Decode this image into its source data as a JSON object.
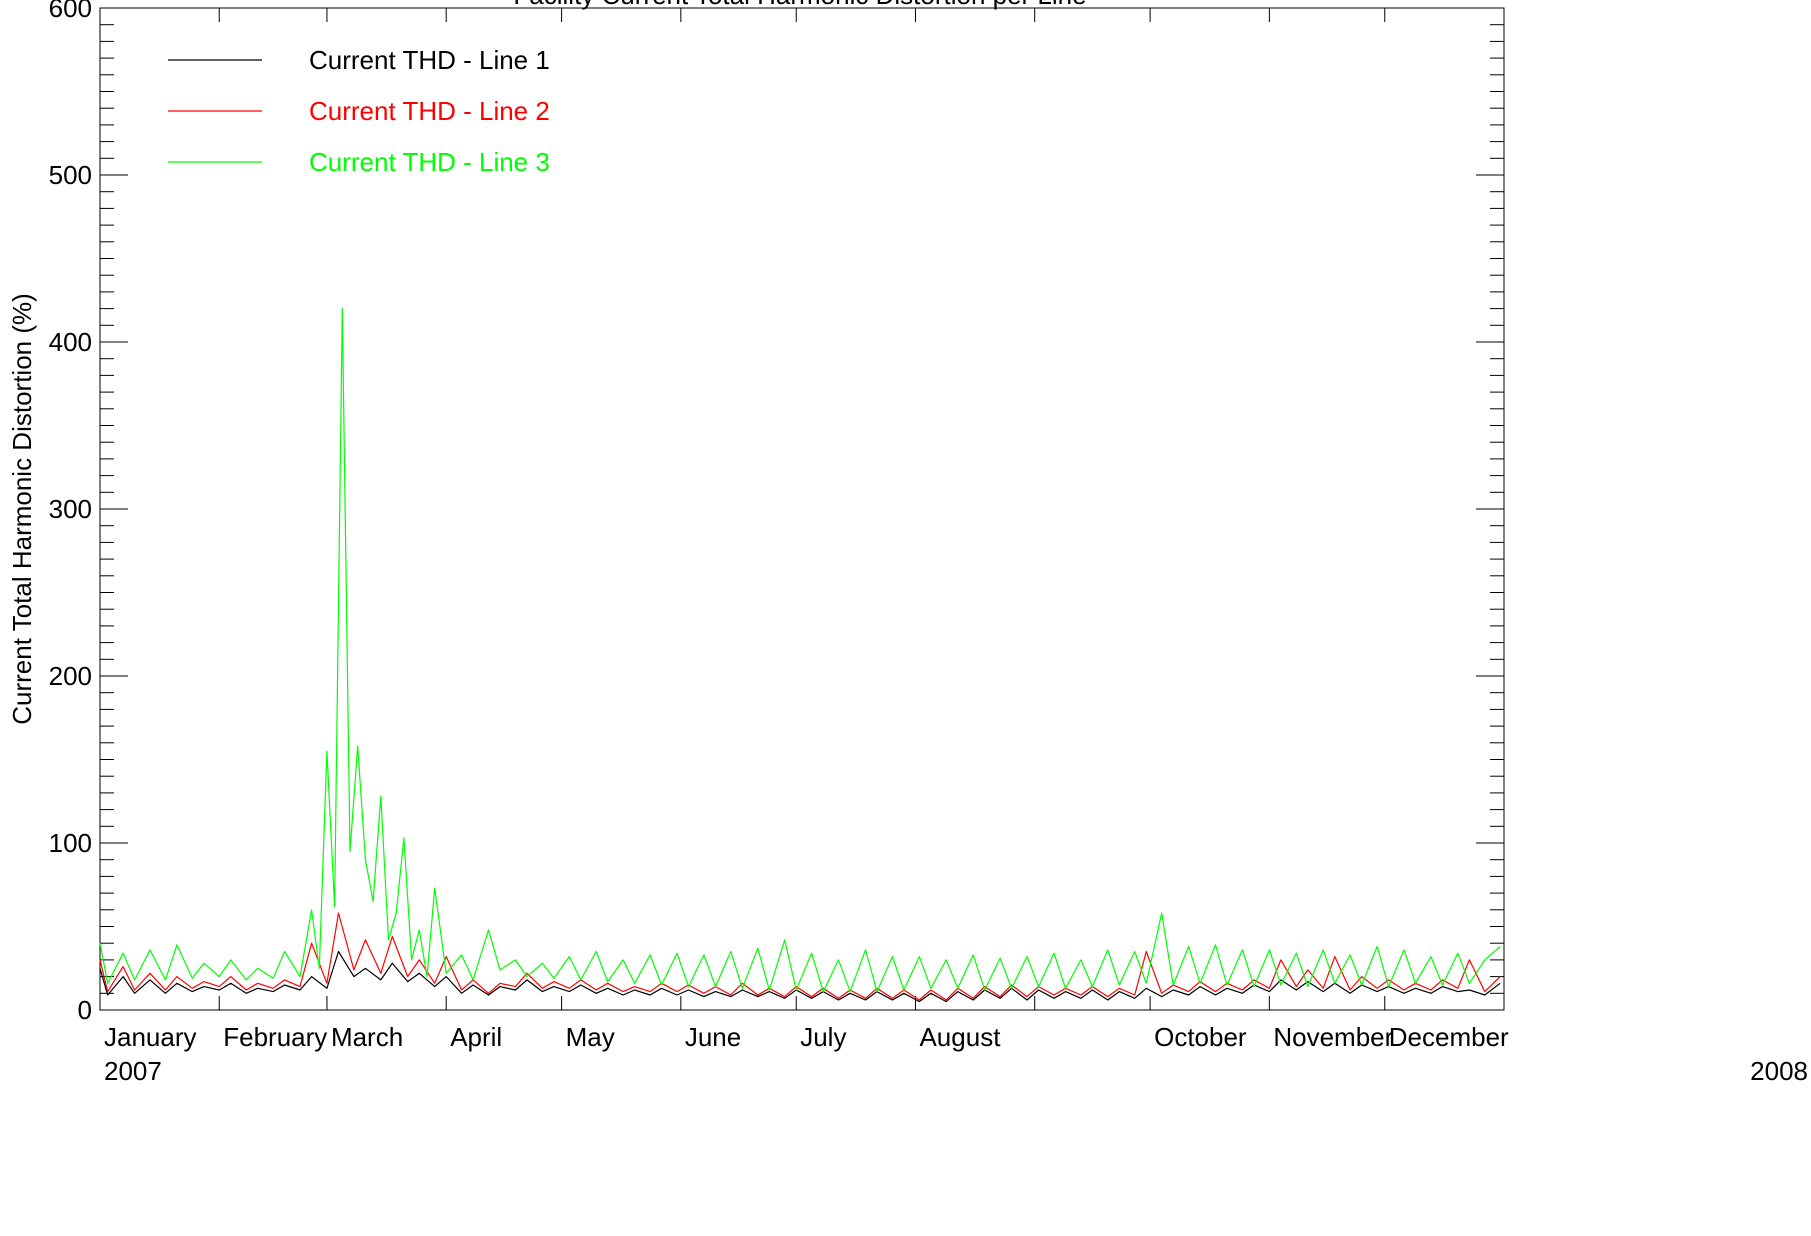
{
  "chart_data": {
    "type": "line",
    "title": "Facility Current Total Harmonic Distortion per Line",
    "ylabel": "Current Total Harmonic Distortion (%)",
    "xlabel": "",
    "ylim": [
      0,
      600
    ],
    "yticks": [
      0,
      100,
      200,
      300,
      400,
      500,
      600
    ],
    "xlim": [
      "2007-01-01",
      "2008-01-01"
    ],
    "month_labels": [
      "January",
      "February",
      "March",
      "April",
      "May",
      "June",
      "July",
      "August",
      "October",
      "November",
      "December"
    ],
    "month_dates": [
      "2007-01-01",
      "2007-02-01",
      "2007-03-01",
      "2007-04-01",
      "2007-05-01",
      "2007-06-01",
      "2007-07-01",
      "2007-08-01",
      "2007-10-01",
      "2007-11-01",
      "2007-12-01"
    ],
    "start_year_label": "2007",
    "end_year_label": "2008",
    "grid": false,
    "legend": "top-left",
    "series": [
      {
        "name": "Current THD - Line 1",
        "color": "#000000",
        "x": [
          "2007-01-01",
          "2007-01-03",
          "2007-01-07",
          "2007-01-10",
          "2007-01-14",
          "2007-01-18",
          "2007-01-21",
          "2007-01-25",
          "2007-01-28",
          "2007-02-01",
          "2007-02-04",
          "2007-02-08",
          "2007-02-11",
          "2007-02-15",
          "2007-02-18",
          "2007-02-22",
          "2007-02-25",
          "2007-03-01",
          "2007-03-04",
          "2007-03-08",
          "2007-03-11",
          "2007-03-15",
          "2007-03-18",
          "2007-03-22",
          "2007-03-25",
          "2007-03-29",
          "2007-04-01",
          "2007-04-05",
          "2007-04-08",
          "2007-04-12",
          "2007-04-15",
          "2007-04-19",
          "2007-04-22",
          "2007-04-26",
          "2007-04-29",
          "2007-05-03",
          "2007-05-06",
          "2007-05-10",
          "2007-05-13",
          "2007-05-17",
          "2007-05-20",
          "2007-05-24",
          "2007-05-27",
          "2007-05-31",
          "2007-06-03",
          "2007-06-07",
          "2007-06-10",
          "2007-06-14",
          "2007-06-17",
          "2007-06-21",
          "2007-06-24",
          "2007-06-28",
          "2007-07-01",
          "2007-07-05",
          "2007-07-08",
          "2007-07-12",
          "2007-07-15",
          "2007-07-19",
          "2007-07-22",
          "2007-07-26",
          "2007-07-29",
          "2007-08-02",
          "2007-08-05",
          "2007-08-09",
          "2007-08-12",
          "2007-08-16",
          "2007-08-19",
          "2007-08-23",
          "2007-08-26",
          "2007-08-30",
          "2007-09-02",
          "2007-09-06",
          "2007-09-09",
          "2007-09-13",
          "2007-09-16",
          "2007-09-20",
          "2007-09-23",
          "2007-09-27",
          "2007-09-30",
          "2007-10-04",
          "2007-10-07",
          "2007-10-11",
          "2007-10-14",
          "2007-10-18",
          "2007-10-21",
          "2007-10-25",
          "2007-10-28",
          "2007-11-01",
          "2007-11-04",
          "2007-11-08",
          "2007-11-11",
          "2007-11-15",
          "2007-11-18",
          "2007-11-22",
          "2007-11-25",
          "2007-11-29",
          "2007-12-02",
          "2007-12-06",
          "2007-12-09",
          "2007-12-13",
          "2007-12-16",
          "2007-12-20",
          "2007-12-23",
          "2007-12-27",
          "2007-12-31"
        ],
        "y": [
          25,
          9,
          20,
          10,
          18,
          10,
          16,
          11,
          14,
          12,
          16,
          10,
          13,
          11,
          15,
          12,
          20,
          13,
          35,
          20,
          25,
          18,
          28,
          17,
          22,
          14,
          20,
          10,
          15,
          9,
          14,
          12,
          18,
          11,
          14,
          11,
          15,
          10,
          13,
          9,
          12,
          9,
          13,
          9,
          12,
          8,
          11,
          8,
          12,
          8,
          11,
          7,
          12,
          7,
          11,
          6,
          10,
          6,
          11,
          6,
          10,
          5,
          10,
          5,
          11,
          6,
          12,
          7,
          13,
          6,
          12,
          7,
          11,
          7,
          12,
          6,
          11,
          7,
          13,
          8,
          12,
          9,
          14,
          9,
          13,
          10,
          15,
          11,
          18,
          12,
          17,
          11,
          16,
          10,
          15,
          11,
          14,
          10,
          13,
          10,
          14,
          11,
          12,
          9,
          16
        ]
      },
      {
        "name": "Current THD - Line 2",
        "color": "#ff0000",
        "x": [
          "2007-01-01",
          "2007-01-03",
          "2007-01-07",
          "2007-01-10",
          "2007-01-14",
          "2007-01-18",
          "2007-01-21",
          "2007-01-25",
          "2007-01-28",
          "2007-02-01",
          "2007-02-04",
          "2007-02-08",
          "2007-02-11",
          "2007-02-15",
          "2007-02-18",
          "2007-02-22",
          "2007-02-25",
          "2007-03-01",
          "2007-03-04",
          "2007-03-08",
          "2007-03-11",
          "2007-03-15",
          "2007-03-18",
          "2007-03-22",
          "2007-03-25",
          "2007-03-29",
          "2007-04-01",
          "2007-04-05",
          "2007-04-08",
          "2007-04-12",
          "2007-04-15",
          "2007-04-19",
          "2007-04-22",
          "2007-04-26",
          "2007-04-29",
          "2007-05-03",
          "2007-05-06",
          "2007-05-10",
          "2007-05-13",
          "2007-05-17",
          "2007-05-20",
          "2007-05-24",
          "2007-05-27",
          "2007-05-31",
          "2007-06-03",
          "2007-06-07",
          "2007-06-10",
          "2007-06-14",
          "2007-06-17",
          "2007-06-21",
          "2007-06-24",
          "2007-06-28",
          "2007-07-01",
          "2007-07-05",
          "2007-07-08",
          "2007-07-12",
          "2007-07-15",
          "2007-07-19",
          "2007-07-22",
          "2007-07-26",
          "2007-07-29",
          "2007-08-02",
          "2007-08-05",
          "2007-08-09",
          "2007-08-12",
          "2007-08-16",
          "2007-08-19",
          "2007-08-23",
          "2007-08-26",
          "2007-08-30",
          "2007-09-02",
          "2007-09-06",
          "2007-09-09",
          "2007-09-13",
          "2007-09-16",
          "2007-09-20",
          "2007-09-23",
          "2007-09-27",
          "2007-09-30",
          "2007-10-04",
          "2007-10-07",
          "2007-10-11",
          "2007-10-14",
          "2007-10-18",
          "2007-10-21",
          "2007-10-25",
          "2007-10-28",
          "2007-11-01",
          "2007-11-04",
          "2007-11-08",
          "2007-11-11",
          "2007-11-15",
          "2007-11-18",
          "2007-11-22",
          "2007-11-25",
          "2007-11-29",
          "2007-12-02",
          "2007-12-06",
          "2007-12-09",
          "2007-12-13",
          "2007-12-16",
          "2007-12-20",
          "2007-12-23",
          "2007-12-27",
          "2007-12-31"
        ],
        "y": [
          30,
          11,
          26,
          12,
          22,
          12,
          20,
          13,
          17,
          14,
          20,
          12,
          16,
          13,
          18,
          14,
          40,
          16,
          58,
          24,
          42,
          22,
          44,
          20,
          30,
          16,
          32,
          12,
          18,
          10,
          16,
          14,
          22,
          13,
          17,
          13,
          18,
          12,
          16,
          11,
          14,
          11,
          16,
          11,
          15,
          10,
          14,
          9,
          16,
          9,
          13,
          8,
          14,
          8,
          13,
          7,
          12,
          7,
          13,
          7,
          12,
          6,
          12,
          6,
          13,
          7,
          14,
          8,
          15,
          8,
          14,
          9,
          13,
          9,
          14,
          8,
          13,
          9,
          35,
          10,
          15,
          11,
          17,
          11,
          16,
          12,
          18,
          13,
          30,
          14,
          24,
          13,
          32,
          12,
          20,
          13,
          18,
          12,
          16,
          12,
          18,
          13,
          30,
          11,
          20
        ]
      },
      {
        "name": "Current THD - Line 3",
        "color": "#00ff00",
        "x": [
          "2007-01-01",
          "2007-01-03",
          "2007-01-07",
          "2007-01-10",
          "2007-01-14",
          "2007-01-18",
          "2007-01-21",
          "2007-01-25",
          "2007-01-28",
          "2007-02-01",
          "2007-02-04",
          "2007-02-08",
          "2007-02-11",
          "2007-02-15",
          "2007-02-18",
          "2007-02-22",
          "2007-02-25",
          "2007-02-27",
          "2007-03-01",
          "2007-03-03",
          "2007-03-05",
          "2007-03-07",
          "2007-03-09",
          "2007-03-11",
          "2007-03-13",
          "2007-03-15",
          "2007-03-17",
          "2007-03-19",
          "2007-03-21",
          "2007-03-23",
          "2007-03-25",
          "2007-03-27",
          "2007-03-29",
          "2007-04-01",
          "2007-04-05",
          "2007-04-08",
          "2007-04-12",
          "2007-04-15",
          "2007-04-19",
          "2007-04-22",
          "2007-04-26",
          "2007-04-29",
          "2007-05-03",
          "2007-05-06",
          "2007-05-10",
          "2007-05-13",
          "2007-05-17",
          "2007-05-20",
          "2007-05-24",
          "2007-05-27",
          "2007-05-31",
          "2007-06-03",
          "2007-06-07",
          "2007-06-10",
          "2007-06-14",
          "2007-06-17",
          "2007-06-21",
          "2007-06-24",
          "2007-06-28",
          "2007-07-01",
          "2007-07-05",
          "2007-07-08",
          "2007-07-12",
          "2007-07-15",
          "2007-07-19",
          "2007-07-22",
          "2007-07-26",
          "2007-07-29",
          "2007-08-02",
          "2007-08-05",
          "2007-08-09",
          "2007-08-12",
          "2007-08-16",
          "2007-08-19",
          "2007-08-23",
          "2007-08-26",
          "2007-08-30",
          "2007-09-02",
          "2007-09-06",
          "2007-09-09",
          "2007-09-13",
          "2007-09-16",
          "2007-09-20",
          "2007-09-23",
          "2007-09-27",
          "2007-09-30",
          "2007-10-04",
          "2007-10-07",
          "2007-10-11",
          "2007-10-14",
          "2007-10-18",
          "2007-10-21",
          "2007-10-25",
          "2007-10-28",
          "2007-11-01",
          "2007-11-04",
          "2007-11-08",
          "2007-11-11",
          "2007-11-15",
          "2007-11-18",
          "2007-11-22",
          "2007-11-25",
          "2007-11-29",
          "2007-12-02",
          "2007-12-06",
          "2007-12-09",
          "2007-12-13",
          "2007-12-16",
          "2007-12-20",
          "2007-12-23",
          "2007-12-27",
          "2007-12-31"
        ],
        "y": [
          40,
          16,
          34,
          18,
          36,
          18,
          39,
          19,
          28,
          20,
          30,
          18,
          25,
          19,
          35,
          20,
          60,
          25,
          155,
          62,
          420,
          95,
          158,
          90,
          65,
          128,
          42,
          58,
          103,
          30,
          48,
          20,
          73,
          22,
          33,
          18,
          48,
          24,
          30,
          20,
          28,
          19,
          32,
          18,
          35,
          17,
          30,
          16,
          33,
          15,
          34,
          14,
          33,
          14,
          35,
          13,
          37,
          12,
          42,
          12,
          34,
          11,
          30,
          11,
          36,
          11,
          32,
          12,
          32,
          13,
          30,
          13,
          33,
          12,
          31,
          13,
          32,
          14,
          34,
          13,
          30,
          14,
          36,
          15,
          35,
          16,
          58,
          15,
          38,
          16,
          39,
          15,
          36,
          14,
          36,
          15,
          34,
          14,
          36,
          16,
          33,
          15,
          38,
          14,
          36,
          16,
          32,
          15,
          34,
          16,
          30,
          38
        ]
      }
    ]
  }
}
